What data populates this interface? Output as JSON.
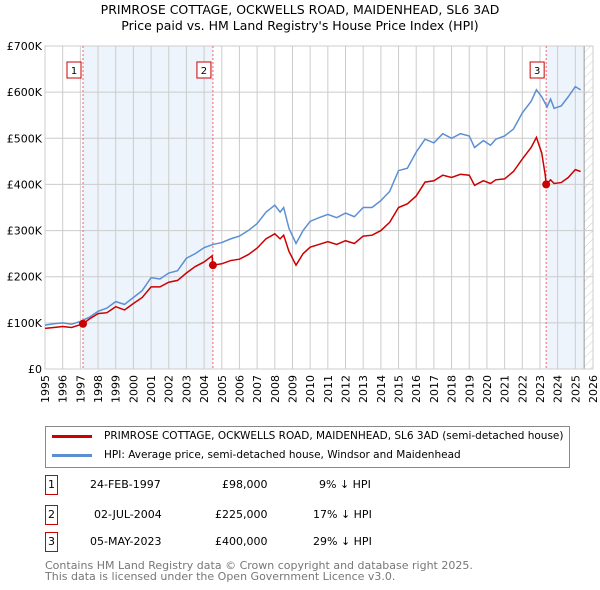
{
  "chart_data": {
    "type": "line",
    "title": "PRIMROSE COTTAGE, OCKWELLS ROAD, MAIDENHEAD, SL6 3AD",
    "subtitle": "Price paid vs. HM Land Registry's House Price Index (HPI)",
    "xlim": [
      1995,
      2026
    ],
    "ylim": [
      0,
      700000
    ],
    "x_ticks": [
      "1995",
      "1996",
      "1997",
      "1998",
      "1999",
      "2000",
      "2001",
      "2002",
      "2003",
      "2004",
      "2005",
      "2006",
      "2007",
      "2008",
      "2009",
      "2010",
      "2011",
      "2012",
      "2013",
      "2014",
      "2015",
      "2016",
      "2017",
      "2018",
      "2019",
      "2020",
      "2021",
      "2022",
      "2023",
      "2024",
      "2025",
      "2026"
    ],
    "y_ticks": [
      {
        "v": 0,
        "label": "£0"
      },
      {
        "v": 100000,
        "label": "£100K"
      },
      {
        "v": 200000,
        "label": "£200K"
      },
      {
        "v": 300000,
        "label": "£300K"
      },
      {
        "v": 400000,
        "label": "£400K"
      },
      {
        "v": 500000,
        "label": "£500K"
      },
      {
        "v": 600000,
        "label": "£600K"
      },
      {
        "v": 700000,
        "label": "£700K"
      }
    ],
    "grid": true,
    "series": [
      {
        "name": "PRIMROSE COTTAGE, OCKWELLS ROAD, MAIDENHEAD, SL6 3AD (semi-detached house)",
        "color": "#cc0000",
        "x": [
          1995,
          1995.5,
          1996,
          1996.5,
          1997.15,
          1997.5,
          1998,
          1998.5,
          1999,
          1999.5,
          2000,
          2000.5,
          2001,
          2001.5,
          2002,
          2002.5,
          2003,
          2003.5,
          2004,
          2004.45,
          2004.5,
          2005,
          2005.5,
          2006,
          2006.5,
          2007,
          2007.5,
          2008,
          2008.3,
          2008.5,
          2008.8,
          2009.2,
          2009.6,
          2010,
          2010.5,
          2011,
          2011.5,
          2012,
          2012.5,
          2013,
          2013.5,
          2014,
          2014.5,
          2015,
          2015.5,
          2016,
          2016.5,
          2017,
          2017.5,
          2018,
          2018.5,
          2019,
          2019.3,
          2019.8,
          2020.2,
          2020.5,
          2021,
          2021.5,
          2022,
          2022.5,
          2022.8,
          2023.1,
          2023.3,
          2023.35,
          2023.6,
          2023.8,
          2024.2,
          2024.6,
          2025,
          2025.3
        ],
        "values": [
          88000,
          90000,
          92000,
          90000,
          98000,
          108000,
          120000,
          122000,
          135000,
          128000,
          142000,
          155000,
          178000,
          178000,
          188000,
          192000,
          208000,
          222000,
          232000,
          245000,
          225000,
          228000,
          235000,
          238000,
          248000,
          262000,
          282000,
          293000,
          282000,
          290000,
          255000,
          225000,
          250000,
          264000,
          270000,
          276000,
          270000,
          278000,
          272000,
          288000,
          290000,
          300000,
          318000,
          350000,
          358000,
          375000,
          405000,
          408000,
          420000,
          415000,
          422000,
          420000,
          398000,
          408000,
          402000,
          410000,
          412000,
          428000,
          455000,
          480000,
          502000,
          468000,
          420000,
          400000,
          410000,
          402000,
          404000,
          415000,
          432000,
          428000
        ]
      },
      {
        "name": "HPI: Average price, semi-detached house, Windsor and Maidenhead",
        "color": "#5b8fd4",
        "x": [
          1995,
          1995.5,
          1996,
          1996.5,
          1997,
          1997.5,
          1998,
          1998.5,
          1999,
          1999.5,
          2000,
          2000.5,
          2001,
          2001.5,
          2002,
          2002.5,
          2003,
          2003.5,
          2004,
          2004.5,
          2005,
          2005.5,
          2006,
          2006.5,
          2007,
          2007.5,
          2008,
          2008.3,
          2008.5,
          2008.8,
          2009.2,
          2009.6,
          2010,
          2010.5,
          2011,
          2011.5,
          2012,
          2012.5,
          2013,
          2013.5,
          2014,
          2014.5,
          2015,
          2015.5,
          2016,
          2016.5,
          2017,
          2017.5,
          2018,
          2018.5,
          2019,
          2019.3,
          2019.8,
          2020.2,
          2020.5,
          2021,
          2021.5,
          2022,
          2022.5,
          2022.8,
          2023.1,
          2023.4,
          2023.6,
          2023.8,
          2024.2,
          2024.6,
          2025,
          2025.3
        ],
        "values": [
          95000,
          98000,
          100000,
          97000,
          103000,
          112000,
          125000,
          132000,
          146000,
          140000,
          155000,
          170000,
          198000,
          195000,
          208000,
          213000,
          240000,
          250000,
          263000,
          270000,
          274000,
          282000,
          288000,
          300000,
          315000,
          340000,
          355000,
          340000,
          350000,
          305000,
          272000,
          300000,
          320000,
          328000,
          335000,
          328000,
          338000,
          330000,
          350000,
          350000,
          365000,
          385000,
          430000,
          435000,
          470000,
          498000,
          490000,
          510000,
          500000,
          510000,
          505000,
          480000,
          495000,
          485000,
          498000,
          505000,
          520000,
          555000,
          580000,
          605000,
          590000,
          568000,
          585000,
          565000,
          570000,
          590000,
          612000,
          605000
        ]
      }
    ],
    "sales": [
      {
        "n": "1",
        "date": "24-FEB-1997",
        "x": 1997.15,
        "price": "£98,000",
        "value": 98000,
        "hpi": "9% ↓ HPI"
      },
      {
        "n": "2",
        "date": "02-JUL-2004",
        "x": 2004.5,
        "price": "£225,000",
        "value": 225000,
        "hpi": "17% ↓ HPI"
      },
      {
        "n": "3",
        "date": "05-MAY-2023",
        "x": 2023.35,
        "price": "£400,000",
        "value": 400000,
        "hpi": "29% ↓ HPI"
      }
    ],
    "shaded_ranges": [
      [
        1997.15,
        2004.5
      ],
      [
        2023.35,
        2025.5
      ]
    ],
    "forecast_hatch_from": 2025.5
  },
  "footer": {
    "line1": "Contains HM Land Registry data © Crown copyright and database right 2025.",
    "line2": "This data is licensed under the Open Government Licence v3.0."
  }
}
